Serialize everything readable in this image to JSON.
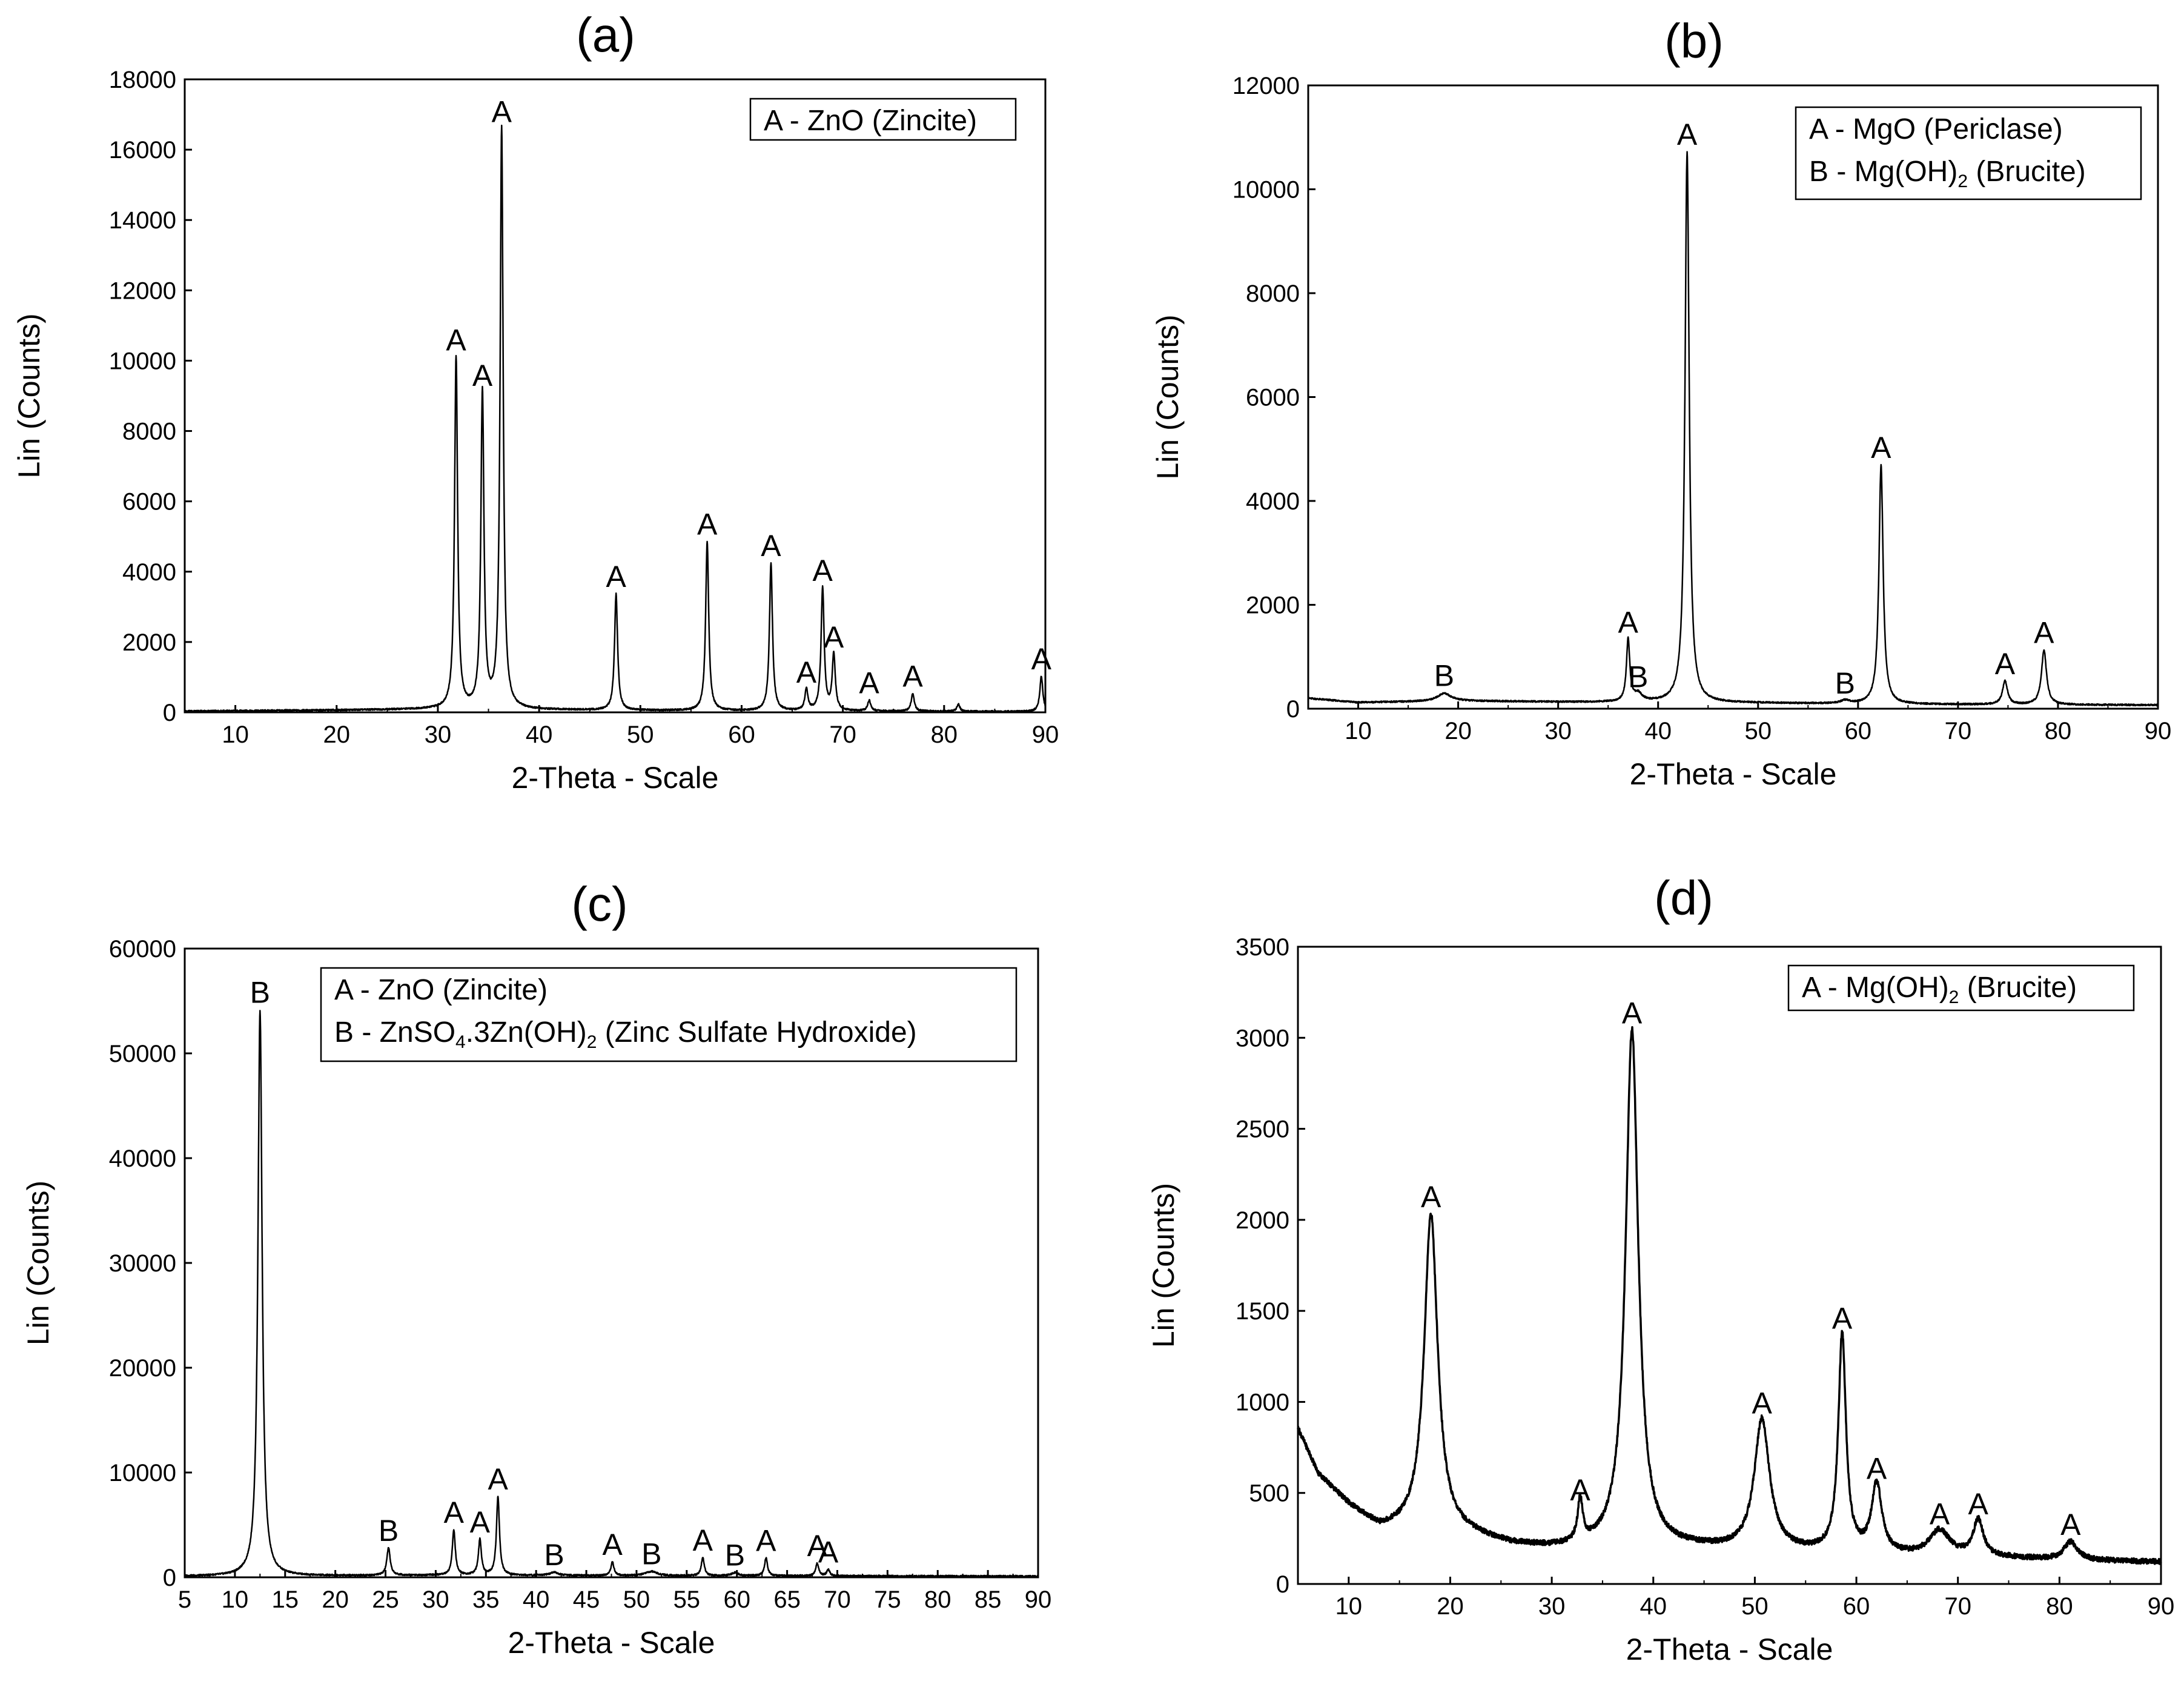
{
  "figure": {
    "panels": [
      "(a)",
      "(b)",
      "(c)",
      "(d)"
    ]
  },
  "chart_data": [
    {
      "type": "line",
      "title": "(a)",
      "xlabel": "2-Theta - Scale",
      "ylabel": "Lin (Counts)",
      "xlim": [
        5,
        90
      ],
      "ylim": [
        0,
        18000
      ],
      "xticks": [
        10,
        20,
        30,
        40,
        50,
        60,
        70,
        80,
        90
      ],
      "yticks": [
        0,
        2000,
        4000,
        6000,
        8000,
        10000,
        12000,
        14000,
        16000,
        18000
      ],
      "baseline": [
        [
          5,
          30
        ],
        [
          20,
          60
        ],
        [
          30,
          90
        ],
        [
          45,
          60
        ],
        [
          60,
          40
        ],
        [
          90,
          20
        ]
      ],
      "peaks": [
        {
          "x": 31.8,
          "y": 10000,
          "w": 0.18,
          "label": "A"
        },
        {
          "x": 34.4,
          "y": 9000,
          "w": 0.18,
          "label": "A"
        },
        {
          "x": 36.3,
          "y": 16500,
          "w": 0.18,
          "label": "A"
        },
        {
          "x": 47.6,
          "y": 3300,
          "w": 0.18,
          "label": "A"
        },
        {
          "x": 56.6,
          "y": 4800,
          "w": 0.18,
          "label": "A"
        },
        {
          "x": 62.9,
          "y": 4200,
          "w": 0.18,
          "label": "A"
        },
        {
          "x": 66.4,
          "y": 600,
          "w": 0.18,
          "label": "A"
        },
        {
          "x": 68.0,
          "y": 3500,
          "w": 0.18,
          "label": "A"
        },
        {
          "x": 69.1,
          "y": 1600,
          "w": 0.18,
          "label": "A"
        },
        {
          "x": 72.6,
          "y": 300,
          "w": 0.18,
          "label": "A"
        },
        {
          "x": 76.9,
          "y": 500,
          "w": 0.18,
          "label": "A"
        },
        {
          "x": 81.4,
          "y": 200,
          "w": 0.18,
          "label": ""
        },
        {
          "x": 89.6,
          "y": 1000,
          "w": 0.18,
          "label": "A"
        }
      ],
      "legend": [
        {
          "text": "A - ZnO (Zincite)"
        }
      ],
      "legend_position": "top-right"
    },
    {
      "type": "line",
      "title": "(b)",
      "xlabel": "2-Theta - Scale",
      "ylabel": "Lin (Counts)",
      "xlim": [
        5,
        90
      ],
      "ylim": [
        0,
        12000
      ],
      "xticks": [
        10,
        20,
        30,
        40,
        50,
        60,
        70,
        80,
        90
      ],
      "yticks": [
        0,
        2000,
        4000,
        6000,
        8000,
        10000,
        12000
      ],
      "baseline": [
        [
          5,
          200
        ],
        [
          10,
          120
        ],
        [
          20,
          150
        ],
        [
          30,
          130
        ],
        [
          40,
          120
        ],
        [
          50,
          110
        ],
        [
          60,
          90
        ],
        [
          70,
          80
        ],
        [
          90,
          70
        ]
      ],
      "peaks": [
        {
          "x": 18.6,
          "y": 150,
          "w": 0.8,
          "label": "B"
        },
        {
          "x": 37.0,
          "y": 1200,
          "w": 0.2,
          "label": "A"
        },
        {
          "x": 38.0,
          "y": 150,
          "w": 0.5,
          "label": "B"
        },
        {
          "x": 42.9,
          "y": 10600,
          "w": 0.25,
          "label": "A"
        },
        {
          "x": 58.7,
          "y": 60,
          "w": 0.5,
          "label": "B"
        },
        {
          "x": 62.3,
          "y": 4600,
          "w": 0.25,
          "label": "A"
        },
        {
          "x": 74.7,
          "y": 450,
          "w": 0.3,
          "label": "A"
        },
        {
          "x": 78.6,
          "y": 1050,
          "w": 0.3,
          "label": "A"
        }
      ],
      "legend": [
        {
          "text": "A - MgO (Periclase)"
        },
        {
          "text": "B - Mg(OH)",
          "sub": "2",
          "after": " (Brucite)"
        }
      ],
      "legend_position": "top-right"
    },
    {
      "type": "line",
      "title": "(c)",
      "xlabel": "2-Theta - Scale",
      "ylabel": "Lin (Counts)",
      "xlim": [
        5,
        90
      ],
      "ylim": [
        0,
        60000
      ],
      "xticks": [
        5,
        10,
        15,
        20,
        25,
        30,
        35,
        40,
        45,
        50,
        55,
        60,
        65,
        70,
        75,
        80,
        85,
        90
      ],
      "yticks": [
        0,
        10000,
        20000,
        30000,
        40000,
        50000,
        60000
      ],
      "baseline": [
        [
          5,
          100
        ],
        [
          20,
          150
        ],
        [
          30,
          200
        ],
        [
          50,
          150
        ],
        [
          90,
          100
        ]
      ],
      "peaks": [
        {
          "x": 12.5,
          "y": 54000,
          "w": 0.25,
          "label": "B"
        },
        {
          "x": 25.3,
          "y": 2600,
          "w": 0.2,
          "label": "B"
        },
        {
          "x": 31.8,
          "y": 4300,
          "w": 0.18,
          "label": "A"
        },
        {
          "x": 34.4,
          "y": 3400,
          "w": 0.18,
          "label": "A"
        },
        {
          "x": 36.2,
          "y": 7500,
          "w": 0.18,
          "label": "A"
        },
        {
          "x": 41.8,
          "y": 300,
          "w": 0.5,
          "label": "B"
        },
        {
          "x": 47.6,
          "y": 1300,
          "w": 0.18,
          "label": "A"
        },
        {
          "x": 51.5,
          "y": 400,
          "w": 0.7,
          "label": "B"
        },
        {
          "x": 56.6,
          "y": 1700,
          "w": 0.18,
          "label": "A"
        },
        {
          "x": 59.8,
          "y": 300,
          "w": 0.4,
          "label": "B"
        },
        {
          "x": 62.9,
          "y": 1700,
          "w": 0.18,
          "label": "A"
        },
        {
          "x": 68.0,
          "y": 1200,
          "w": 0.18,
          "label": "A"
        },
        {
          "x": 69.1,
          "y": 600,
          "w": 0.18,
          "label": "A"
        }
      ],
      "legend": [
        {
          "text": "A - ZnO (Zincite)"
        },
        {
          "text": "B - ZnSO",
          "sub": "4",
          "mid": ".3Zn(OH)",
          "sub2": "2",
          "after": " (Zinc Sulfate Hydroxide)"
        }
      ],
      "legend_position": "top-right"
    },
    {
      "type": "line",
      "title": "(d)",
      "xlabel": "2-Theta - Scale",
      "ylabel": "Lin (Counts)",
      "xlim": [
        5,
        90
      ],
      "ylim": [
        0,
        3500
      ],
      "xticks": [
        10,
        20,
        30,
        40,
        50,
        60,
        70,
        80,
        90
      ],
      "yticks": [
        0,
        500,
        1000,
        1500,
        2000,
        2500,
        3000,
        3500
      ],
      "baseline": [
        [
          5,
          850
        ],
        [
          7,
          600
        ],
        [
          10,
          430
        ],
        [
          13,
          300
        ],
        [
          16,
          290
        ],
        [
          22,
          260
        ],
        [
          26,
          210
        ],
        [
          30,
          190
        ],
        [
          35,
          190
        ],
        [
          44,
          190
        ],
        [
          48,
          180
        ],
        [
          55,
          170
        ],
        [
          60,
          160
        ],
        [
          66,
          150
        ],
        [
          75,
          140
        ],
        [
          80,
          130
        ],
        [
          90,
          120
        ]
      ],
      "peaks": [
        {
          "x": 18.1,
          "y": 1750,
          "w": 0.8,
          "label": "A"
        },
        {
          "x": 32.8,
          "y": 230,
          "w": 0.3,
          "label": "A"
        },
        {
          "x": 37.9,
          "y": 2850,
          "w": 0.75,
          "label": "A"
        },
        {
          "x": 50.7,
          "y": 720,
          "w": 0.9,
          "label": "A"
        },
        {
          "x": 58.6,
          "y": 1200,
          "w": 0.45,
          "label": "A"
        },
        {
          "x": 62.0,
          "y": 380,
          "w": 0.6,
          "label": "A"
        },
        {
          "x": 68.2,
          "y": 140,
          "w": 1.2,
          "label": "A"
        },
        {
          "x": 72.0,
          "y": 200,
          "w": 0.6,
          "label": "A"
        },
        {
          "x": 81.1,
          "y": 100,
          "w": 0.8,
          "label": "A"
        }
      ],
      "legend": [
        {
          "text": "A - Mg(OH)",
          "sub": "2",
          "after": " (Brucite)"
        }
      ],
      "legend_position": "top-right"
    }
  ]
}
